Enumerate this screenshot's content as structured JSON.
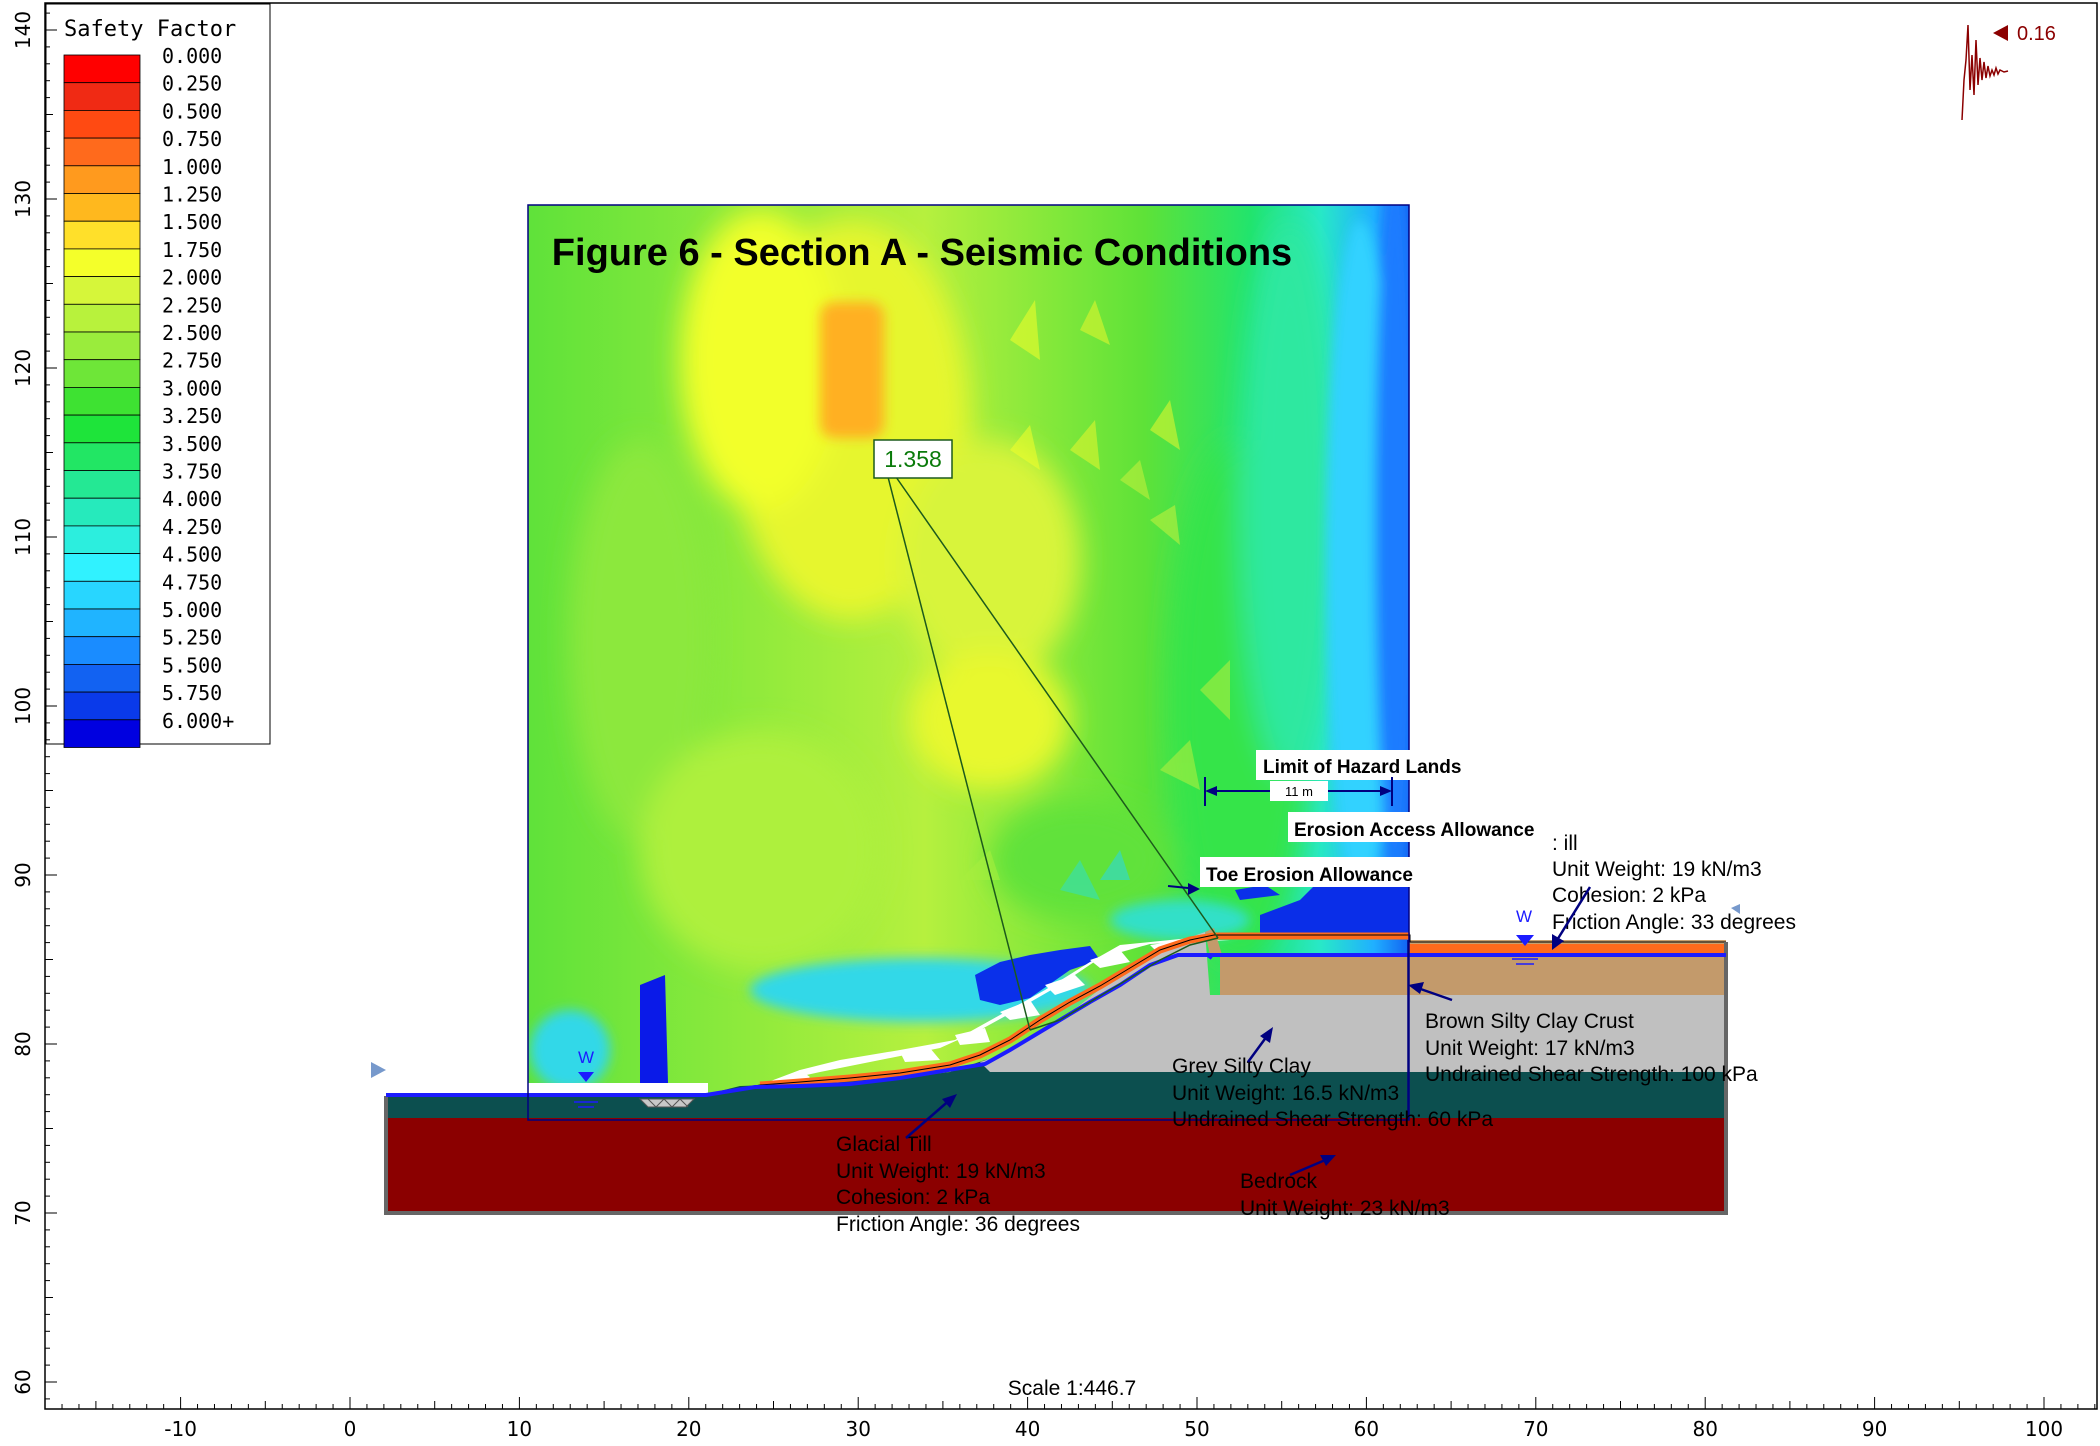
{
  "title": "Figure 6 - Section A - Seismic Conditions",
  "scale_text": "Scale 1:446.7",
  "seismic": {
    "value": "0.16"
  },
  "critical_fs": "1.358",
  "legend": {
    "title": "Safety Factor",
    "entries": [
      {
        "label": "0.000",
        "color": "#ff0000"
      },
      {
        "label": "0.250",
        "color": "#f02a14"
      },
      {
        "label": "0.500",
        "color": "#ff4a12"
      },
      {
        "label": "0.750",
        "color": "#ff6a1c"
      },
      {
        "label": "1.000",
        "color": "#ff9a1e"
      },
      {
        "label": "1.250",
        "color": "#ffb81e"
      },
      {
        "label": "1.500",
        "color": "#ffe02a"
      },
      {
        "label": "1.750",
        "color": "#f4ff2a"
      },
      {
        "label": "2.000",
        "color": "#d6f63a"
      },
      {
        "label": "2.250",
        "color": "#b8f23c"
      },
      {
        "label": "2.500",
        "color": "#9aec3c"
      },
      {
        "label": "2.750",
        "color": "#6ee638"
      },
      {
        "label": "3.000",
        "color": "#3ee232"
      },
      {
        "label": "3.250",
        "color": "#1ee43a"
      },
      {
        "label": "3.500",
        "color": "#22e664"
      },
      {
        "label": "3.750",
        "color": "#24e894"
      },
      {
        "label": "4.000",
        "color": "#26eabc"
      },
      {
        "label": "4.250",
        "color": "#2ceede"
      },
      {
        "label": "4.500",
        "color": "#30f2ff"
      },
      {
        "label": "4.750",
        "color": "#28d6ff"
      },
      {
        "label": "5.000",
        "color": "#20b4ff"
      },
      {
        "label": "5.250",
        "color": "#1a8cff"
      },
      {
        "label": "5.500",
        "color": "#1262f2"
      },
      {
        "label": "5.750",
        "color": "#0a3aea"
      },
      {
        "label": "6.000+",
        "color": "#0000e0"
      }
    ]
  },
  "axes": {
    "x_ticks": [
      "-10",
      "0",
      "10",
      "20",
      "30",
      "40",
      "50",
      "60",
      "70",
      "80",
      "90",
      "100"
    ],
    "y_ticks": [
      "60",
      "70",
      "80",
      "90",
      "100",
      "110",
      "120",
      "130",
      "140"
    ]
  },
  "annotations": {
    "limit_hazard": "Limit of Hazard Lands",
    "dim_11m": "11 m",
    "erosion_access": "Erosion Access Allowance",
    "toe_erosion": "Toe Erosion Allowance",
    "fill_title": ": ill",
    "fill_line1": "Unit Weight: 19 kN/m3",
    "fill_line2": "Cohesion: 2 kPa",
    "fill_line3": "Friction Angle: 33 degrees",
    "brown_title": "Brown Silty Clay Crust",
    "brown_line1": "Unit Weight: 17 kN/m3",
    "brown_line2": "Undrained Shear Strength: 100 kPa",
    "grey_title": "Grey Silty Clay",
    "grey_line1": "Unit Weight: 16.5 kN/m3",
    "grey_line2": "Undrained Shear Strength: 60 kPa",
    "till_title": "Glacial Till",
    "till_line1": "Unit Weight: 19 kN/m3",
    "till_line2": "Cohesion: 2 kPa",
    "till_line3": "Friction Angle: 36 degrees",
    "bedrock_title": "Bedrock",
    "bedrock_line1": "Unit Weight: 23 kN/m3",
    "water_label": "W"
  },
  "colors": {
    "bedrock": "#8b0000",
    "till": "#0c4f4f",
    "grey_clay": "#c0c0c0",
    "brown_crust": "#c39a6b",
    "fill": "#ff6a1c",
    "water_line": "#1c1cff",
    "grid_bg": "#7fe23a",
    "annotation": "#000080",
    "slip": "#1c5a1c",
    "seismic": "#8b0000"
  }
}
